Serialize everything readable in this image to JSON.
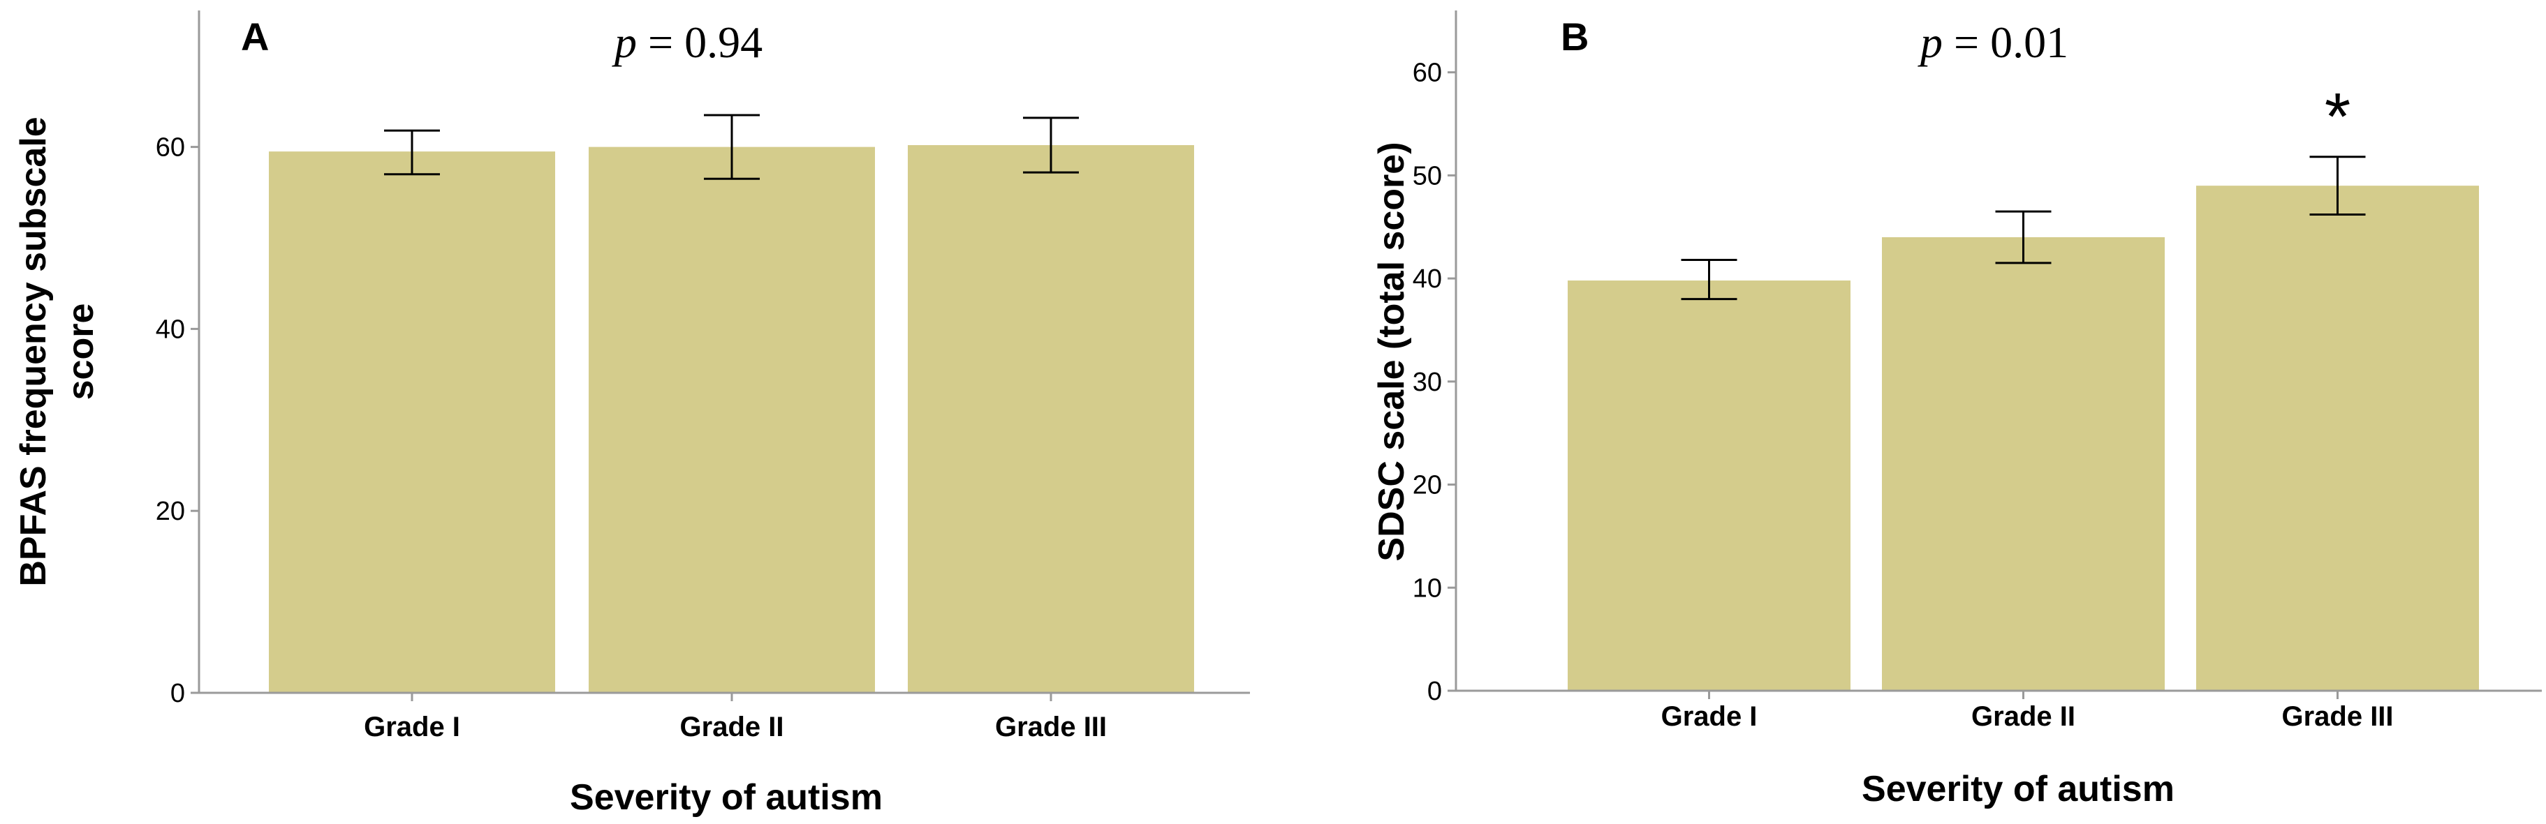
{
  "colors": {
    "bar": "#d4cc8c",
    "axis": "#9a9a9a",
    "errorbar": "#000000"
  },
  "chart_data": [
    {
      "panel": "A",
      "type": "bar",
      "categories": [
        "Grade I",
        "Grade II",
        "Grade III"
      ],
      "values": [
        59.5,
        60.0,
        60.2
      ],
      "error_low": [
        57.0,
        56.5,
        57.2
      ],
      "error_high": [
        61.8,
        63.5,
        63.2
      ],
      "ylim": [
        0,
        75
      ],
      "yticks": [
        0,
        20,
        40,
        60
      ],
      "xlabel": "Severity of autism",
      "ylabel_lines": [
        "BPFAS frequency subscale",
        "score"
      ],
      "annotation": {
        "p_symbol": "p",
        "p_rest": " = 0.94"
      },
      "significance_marks": [
        "",
        "",
        ""
      ]
    },
    {
      "panel": "B",
      "type": "bar",
      "categories": [
        "Grade I",
        "Grade II",
        "Grade III"
      ],
      "values": [
        39.8,
        44.0,
        49.0
      ],
      "error_low": [
        38.0,
        41.5,
        46.2
      ],
      "error_high": [
        41.8,
        46.5,
        51.8
      ],
      "ylim": [
        0,
        66
      ],
      "yticks": [
        0,
        10,
        20,
        30,
        40,
        50,
        60
      ],
      "xlabel": "Severity of autism",
      "ylabel_lines": [
        "SDSC scale (total score)"
      ],
      "annotation": {
        "p_symbol": "p",
        "p_rest": " = 0.01"
      },
      "significance_marks": [
        "",
        "",
        "*"
      ]
    }
  ]
}
